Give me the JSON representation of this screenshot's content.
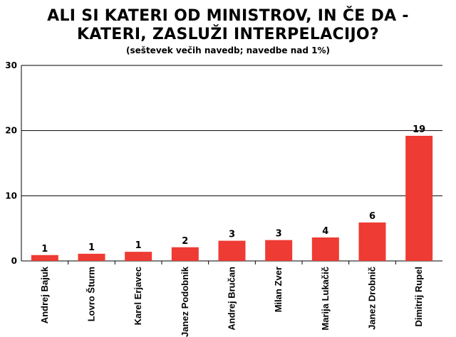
{
  "chart_data": {
    "type": "bar",
    "title_line1": "ALI SI KATERI OD MINISTROV, IN ČE DA -",
    "title_line2": "KATERI, ZASLUŽI INTERPELACIJO?",
    "subtitle": "(seštevek večih navedb; navedbe nad 1%)",
    "categories": [
      "Andrej Bajuk",
      "Lovro Šturm",
      "Karel Erjavec",
      "Janez Podobnik",
      "Andrej Bručan",
      "Milan Zver",
      "Marija Lukačič",
      "Janez Drobnič",
      "Dimitrij Rupel"
    ],
    "values": [
      0.9,
      1.1,
      1.4,
      2.1,
      3.1,
      3.2,
      3.6,
      5.9,
      19.2
    ],
    "data_labels": [
      "1",
      "1",
      "1",
      "2",
      "3",
      "3",
      "4",
      "6",
      "19"
    ],
    "yticks": [
      "0",
      "10",
      "20",
      "30"
    ],
    "ylim": [
      0,
      30
    ],
    "grid": true,
    "bar_color": "#ee3b33"
  }
}
